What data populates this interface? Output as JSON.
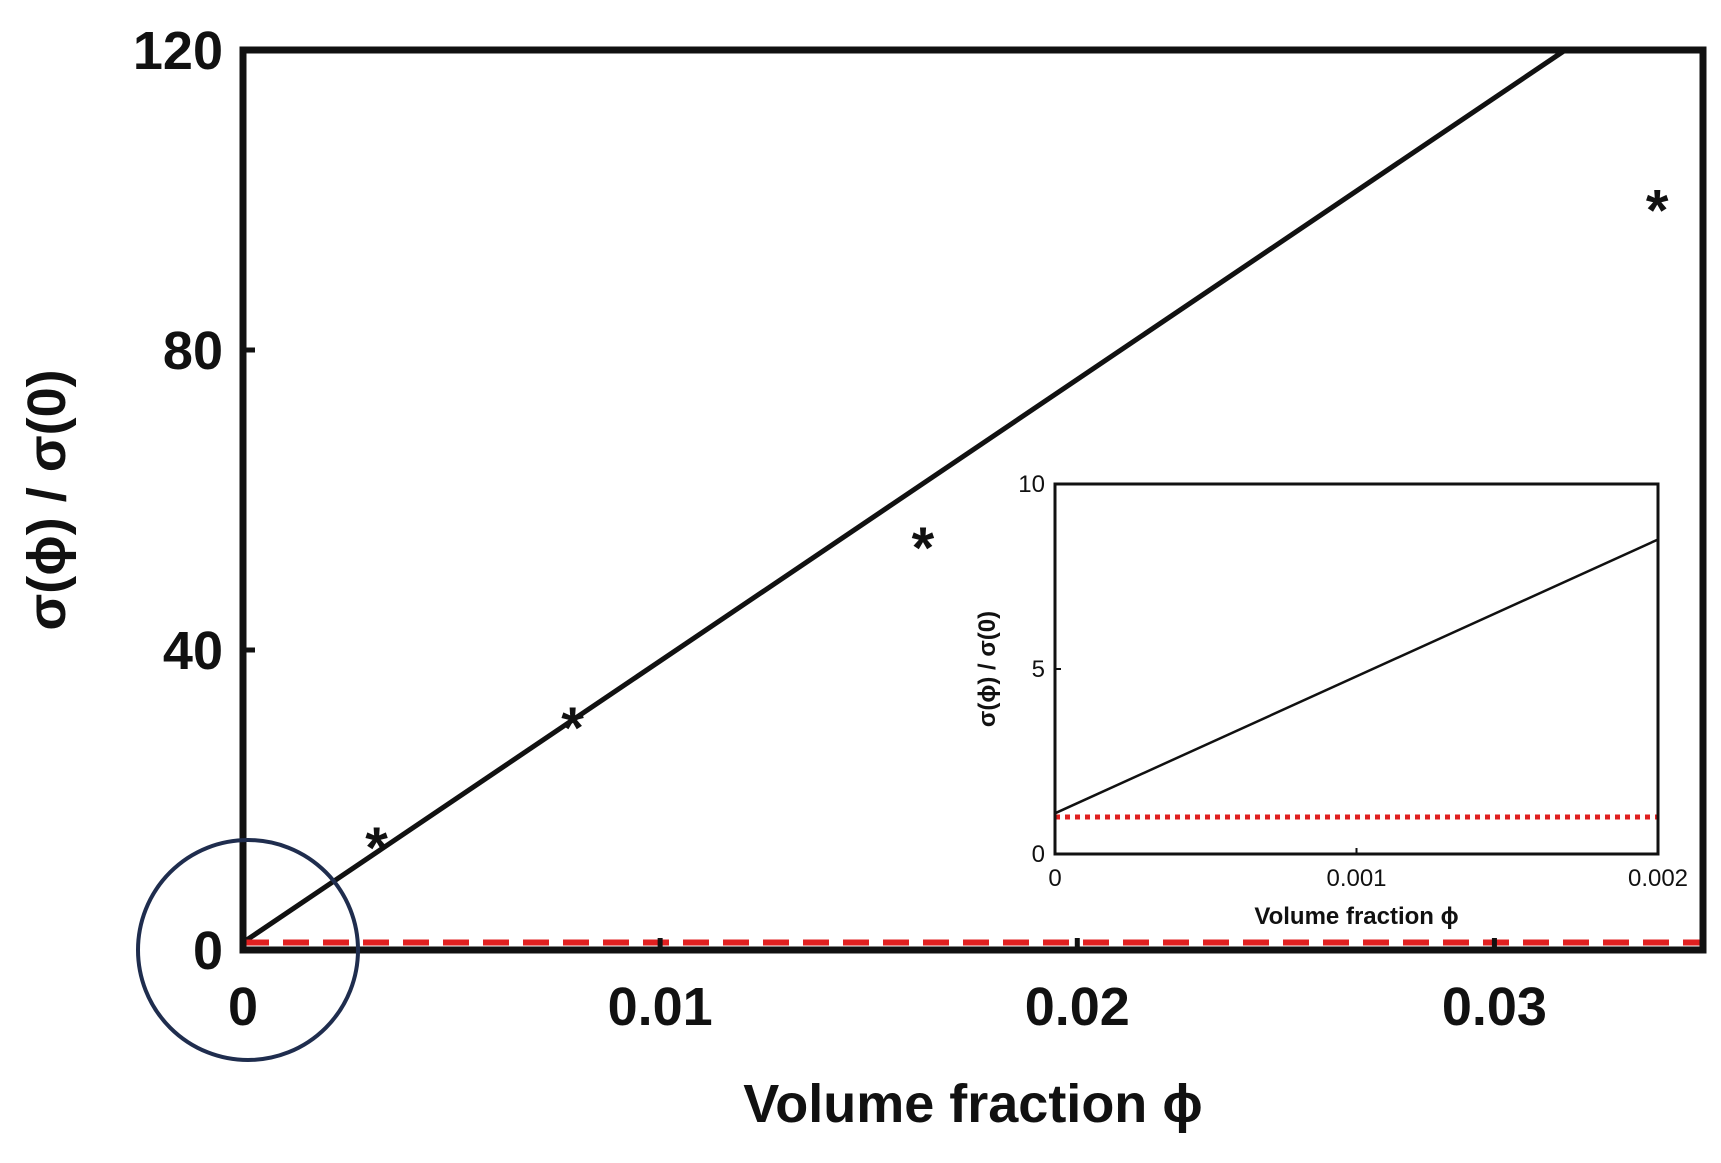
{
  "chart_data": [
    {
      "type": "line",
      "xlabel": "Volume fraction ϕ",
      "ylabel": "σ(ϕ) / σ(0)",
      "xlim": [
        0,
        0.035
      ],
      "ylim": [
        0,
        120
      ],
      "x_ticks": [
        "0",
        "0.01",
        "0.02",
        "0.03"
      ],
      "x_tick_values": [
        0,
        0.01,
        0.02,
        0.03
      ],
      "y_ticks": [
        "0",
        "40",
        "80",
        "120"
      ],
      "y_tick_values": [
        0,
        40,
        80,
        120
      ],
      "grid": false,
      "legend": "none",
      "series": [
        {
          "style": "solid-black-line",
          "color": "#111111",
          "x": [
            0,
            0.0317
          ],
          "y": [
            1,
            120
          ]
        },
        {
          "style": "dashed-red-line",
          "color": "#e02020",
          "x": [
            0,
            0.035
          ],
          "y": [
            1,
            1
          ]
        },
        {
          "style": "star-markers",
          "color": "#111111",
          "marker": "*",
          "x": [
            0.0032,
            0.0079,
            0.0163,
            0.0339
          ],
          "y": [
            16,
            32,
            56,
            101
          ]
        }
      ],
      "annotations": [
        {
          "type": "circle",
          "color": "#1f2d4e",
          "center_x": 0,
          "center_y": 0,
          "note": "highlights region magnified in inset"
        }
      ]
    },
    {
      "type": "line",
      "xlabel": "Volume fraction ϕ",
      "ylabel": "σ(ϕ) / σ(0)",
      "xlim": [
        0,
        0.002
      ],
      "ylim": [
        0,
        10
      ],
      "x_ticks": [
        "0",
        "0.001",
        "0.002"
      ],
      "x_tick_values": [
        0,
        0.001,
        0.002
      ],
      "y_ticks": [
        "0",
        "5",
        "10"
      ],
      "y_tick_values": [
        0,
        5,
        10
      ],
      "grid": false,
      "legend": "none",
      "series": [
        {
          "style": "solid-black-line",
          "color": "#111111",
          "x": [
            0,
            0.002
          ],
          "y": [
            1.1,
            8.5
          ]
        },
        {
          "style": "dotted-red-line",
          "color": "#e02020",
          "x": [
            0,
            0.002
          ],
          "y": [
            1,
            1
          ]
        }
      ]
    }
  ]
}
